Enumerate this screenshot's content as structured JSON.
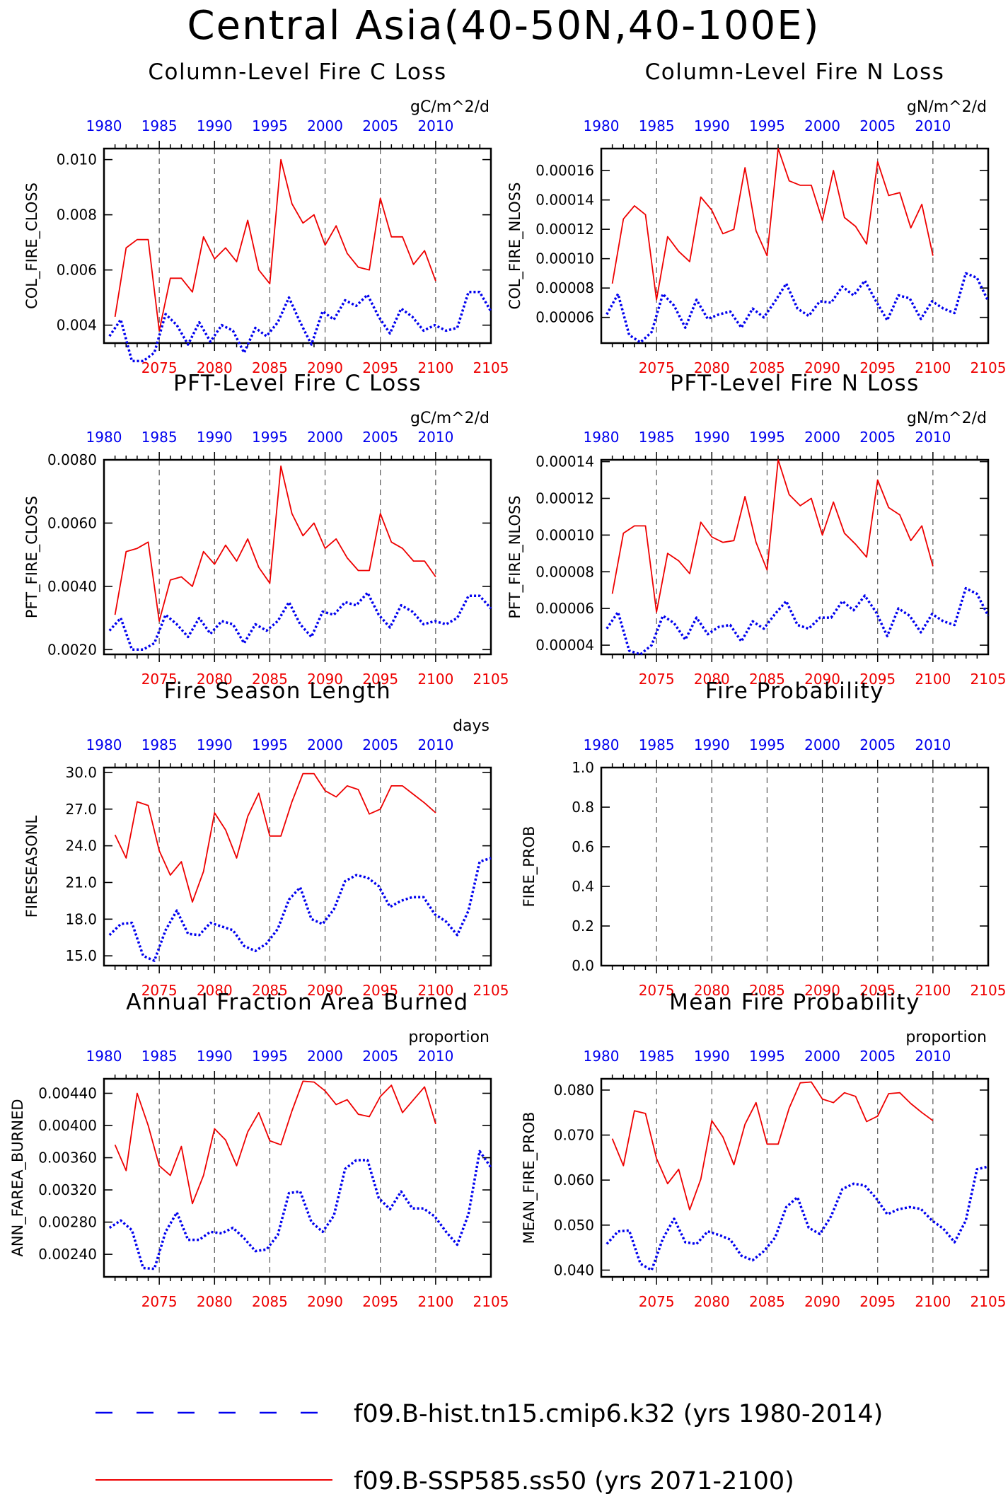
{
  "page_title": "Central Asia(40-50N,40-100E)",
  "colors": {
    "hist": "#0000ee",
    "ssp": "#ee0000",
    "axis": "#000000",
    "grid": "#555555"
  },
  "legend": [
    {
      "label": "f09.B-hist.tn15.cmip6.k32 (yrs 1980-2014)",
      "color": "#0000ee",
      "style": "dashed"
    },
    {
      "label": "f09.B-SSP585.ss50 (yrs 2071-2100)",
      "color": "#ee0000",
      "style": "solid"
    }
  ],
  "chart_data": [
    {
      "type": "line",
      "title": "Column-Level Fire C Loss",
      "units": "gC/m^2/d",
      "ylabel": "COL_FIRE_CLOSS",
      "ylim": [
        0.00335,
        0.0104
      ],
      "yticks": [
        0.004,
        0.006,
        0.008,
        0.01
      ],
      "yticklabels": [
        "0.004",
        "0.006",
        "0.008",
        "0.010"
      ],
      "top_x": [
        1980,
        1985,
        1990,
        1995,
        2000,
        2005,
        2010
      ],
      "bottom_x": [
        2075,
        2080,
        2085,
        2090,
        2095,
        2100,
        2105
      ],
      "hist_x0": 1980,
      "ssp_x0": 2071,
      "series": [
        {
          "role": "hist",
          "values": [
            0.0036,
            0.0042,
            0.0027,
            0.0027,
            0.003,
            0.0044,
            0.004,
            0.0033,
            0.0041,
            0.0034,
            0.004,
            0.0038,
            0.003,
            0.0039,
            0.0036,
            0.0041,
            0.005,
            0.0041,
            0.0033,
            0.0045,
            0.0042,
            0.0049,
            0.0047,
            0.0051,
            0.0043,
            0.0037,
            0.0046,
            0.0043,
            0.0038,
            0.004,
            0.0038,
            0.0039,
            0.0052,
            0.0052,
            0.0045
          ]
        },
        {
          "role": "ssp",
          "values": [
            0.0043,
            0.0068,
            0.0071,
            0.0071,
            0.0038,
            0.0057,
            0.0057,
            0.0052,
            0.0072,
            0.0064,
            0.0068,
            0.0063,
            0.0078,
            0.006,
            0.0055,
            0.01,
            0.0084,
            0.0077,
            0.008,
            0.0069,
            0.0076,
            0.0066,
            0.0061,
            0.006,
            0.0086,
            0.0072,
            0.0072,
            0.0062,
            0.0067,
            0.0056
          ]
        }
      ]
    },
    {
      "type": "line",
      "title": "Column-Level Fire N Loss",
      "units": "gN/m^2/d",
      "ylabel": "COL_FIRE_NLOSS",
      "ylim": [
        4.25e-05,
        0.000175
      ],
      "yticks": [
        6e-05,
        8e-05,
        0.0001,
        0.00012,
        0.00014,
        0.00016
      ],
      "yticklabels": [
        "0.00006",
        "0.00008",
        "0.00010",
        "0.00012",
        "0.00014",
        "0.00016"
      ],
      "top_x": [
        1980,
        1985,
        1990,
        1995,
        2000,
        2005,
        2010
      ],
      "bottom_x": [
        2075,
        2080,
        2085,
        2090,
        2095,
        2100,
        2105
      ],
      "hist_x0": 1980,
      "ssp_x0": 2071,
      "series": [
        {
          "role": "hist",
          "values": [
            6.2e-05,
            7.6e-05,
            4.8e-05,
            4.3e-05,
            5e-05,
            7.6e-05,
            6.8e-05,
            5.3e-05,
            7.2e-05,
            5.9e-05,
            6.2e-05,
            6.4e-05,
            5.3e-05,
            6.6e-05,
            6e-05,
            7.1e-05,
            8.3e-05,
            6.6e-05,
            6.1e-05,
            7.1e-05,
            7e-05,
            8.1e-05,
            7.5e-05,
            8.5e-05,
            7.1e-05,
            5.8e-05,
            7.5e-05,
            7.3e-05,
            5.9e-05,
            7.1e-05,
            6.6e-05,
            6.3e-05,
            9e-05,
            8.7e-05,
            7.1e-05
          ]
        },
        {
          "role": "ssp",
          "values": [
            8.3e-05,
            0.000127,
            0.000136,
            0.00013,
            7.2e-05,
            0.000115,
            0.000105,
            9.8e-05,
            0.000142,
            0.000133,
            0.000117,
            0.00012,
            0.000162,
            0.000119,
            0.000102,
            0.000175,
            0.000153,
            0.00015,
            0.00015,
            0.000126,
            0.00016,
            0.000128,
            0.000122,
            0.00011,
            0.000166,
            0.000143,
            0.000145,
            0.000121,
            0.000137,
            0.000102
          ]
        }
      ]
    },
    {
      "type": "line",
      "title": "PFT-Level Fire C Loss",
      "units": "gC/m^2/d",
      "ylabel": "PFT_FIRE_CLOSS",
      "ylim": [
        0.00185,
        0.008
      ],
      "yticks": [
        0.002,
        0.004,
        0.006,
        0.008
      ],
      "yticklabels": [
        "0.0020",
        "0.0040",
        "0.0060",
        "0.0080"
      ],
      "top_x": [
        1980,
        1985,
        1990,
        1995,
        2000,
        2005,
        2010
      ],
      "bottom_x": [
        2075,
        2080,
        2085,
        2090,
        2095,
        2100,
        2105
      ],
      "hist_x0": 1980,
      "ssp_x0": 2071,
      "series": [
        {
          "role": "hist",
          "values": [
            0.0026,
            0.003,
            0.002,
            0.002,
            0.0022,
            0.0031,
            0.0028,
            0.0024,
            0.003,
            0.0025,
            0.0029,
            0.0028,
            0.0022,
            0.0028,
            0.0026,
            0.0029,
            0.0035,
            0.0028,
            0.0024,
            0.0032,
            0.0031,
            0.0035,
            0.0034,
            0.0038,
            0.0031,
            0.0027,
            0.0034,
            0.0032,
            0.0028,
            0.0029,
            0.0028,
            0.003,
            0.0037,
            0.0037,
            0.0033
          ]
        },
        {
          "role": "ssp",
          "values": [
            0.0031,
            0.0051,
            0.0052,
            0.0054,
            0.0029,
            0.0042,
            0.0043,
            0.004,
            0.0051,
            0.0047,
            0.0053,
            0.0048,
            0.0055,
            0.0046,
            0.0041,
            0.0078,
            0.0063,
            0.0056,
            0.006,
            0.0052,
            0.0055,
            0.0049,
            0.0045,
            0.0045,
            0.0063,
            0.0054,
            0.0052,
            0.0048,
            0.0048,
            0.0043
          ]
        }
      ]
    },
    {
      "type": "line",
      "title": "PFT-Level Fire N Loss",
      "units": "gN/m^2/d",
      "ylabel": "PFT_FIRE_NLOSS",
      "ylim": [
        3.5e-05,
        0.000141
      ],
      "yticks": [
        4e-05,
        6e-05,
        8e-05,
        0.0001,
        0.00012,
        0.00014
      ],
      "yticklabels": [
        "0.00004",
        "0.00006",
        "0.00008",
        "0.00010",
        "0.00012",
        "0.00014"
      ],
      "top_x": [
        1980,
        1985,
        1990,
        1995,
        2000,
        2005,
        2010
      ],
      "bottom_x": [
        2075,
        2080,
        2085,
        2090,
        2095,
        2100,
        2105
      ],
      "hist_x0": 1980,
      "ssp_x0": 2071,
      "series": [
        {
          "role": "hist",
          "values": [
            4.9e-05,
            5.8e-05,
            3.7e-05,
            3.5e-05,
            4e-05,
            5.6e-05,
            5.2e-05,
            4.3e-05,
            5.5e-05,
            4.6e-05,
            5e-05,
            5.1e-05,
            4.2e-05,
            5.3e-05,
            4.9e-05,
            5.7e-05,
            6.4e-05,
            5.1e-05,
            4.9e-05,
            5.5e-05,
            5.5e-05,
            6.4e-05,
            5.9e-05,
            6.7e-05,
            5.8e-05,
            4.5e-05,
            6e-05,
            5.6e-05,
            4.7e-05,
            5.7e-05,
            5.3e-05,
            5.1e-05,
            7.1e-05,
            6.8e-05,
            5.6e-05
          ]
        },
        {
          "role": "ssp",
          "values": [
            6.8e-05,
            0.000101,
            0.000105,
            0.000105,
            5.8e-05,
            9e-05,
            8.6e-05,
            7.9e-05,
            0.000107,
            9.9e-05,
            9.6e-05,
            9.7e-05,
            0.000121,
            9.6e-05,
            8.1e-05,
            0.000141,
            0.000122,
            0.000116,
            0.00012,
            0.0001,
            0.000118,
            0.000101,
            9.5e-05,
            8.8e-05,
            0.00013,
            0.000115,
            0.000111,
            9.7e-05,
            0.000105,
            8.3e-05
          ]
        }
      ]
    },
    {
      "type": "line",
      "title": "Fire Season Length",
      "units": "days",
      "ylabel": "FIRESEASONL",
      "ylim": [
        14.2,
        30.4
      ],
      "yticks": [
        15,
        18,
        21,
        24,
        27,
        30
      ],
      "yticklabels": [
        "15.0",
        "18.0",
        "21.0",
        "24.0",
        "27.0",
        "30.0"
      ],
      "top_x": [
        1980,
        1985,
        1990,
        1995,
        2000,
        2005,
        2010
      ],
      "bottom_x": [
        2075,
        2080,
        2085,
        2090,
        2095,
        2100,
        2105
      ],
      "hist_x0": 1980,
      "ssp_x0": 2071,
      "series": [
        {
          "role": "hist",
          "values": [
            16.7,
            17.6,
            17.7,
            15.0,
            14.6,
            17.1,
            18.7,
            16.8,
            16.7,
            17.7,
            17.4,
            17.1,
            15.8,
            15.4,
            16.0,
            17.2,
            19.6,
            20.6,
            18.0,
            17.6,
            18.8,
            21.1,
            21.6,
            21.4,
            20.7,
            19.0,
            19.5,
            19.8,
            19.8,
            18.4,
            17.8,
            16.7,
            18.7,
            22.7,
            23.0
          ]
        },
        {
          "role": "ssp",
          "values": [
            24.9,
            23.0,
            27.6,
            27.3,
            23.6,
            21.6,
            22.7,
            19.4,
            21.9,
            26.7,
            25.3,
            23.0,
            26.4,
            28.3,
            24.8,
            24.8,
            27.6,
            29.9,
            29.9,
            28.5,
            28.0,
            28.9,
            28.6,
            26.6,
            27.0,
            28.9,
            28.9,
            28.2,
            27.5,
            26.7
          ]
        }
      ]
    },
    {
      "type": "line",
      "title": "Fire Probability",
      "units": "",
      "ylabel": "FIRE_PROB",
      "ylim": [
        0,
        1
      ],
      "yticks": [
        0,
        0.2,
        0.4,
        0.6,
        0.8,
        1.0
      ],
      "yticklabels": [
        "0.0",
        "0.2",
        "0.4",
        "0.6",
        "0.8",
        "1.0"
      ],
      "top_x": [
        1980,
        1985,
        1990,
        1995,
        2000,
        2005,
        2010
      ],
      "bottom_x": [
        2075,
        2080,
        2085,
        2090,
        2095,
        2100,
        2105
      ],
      "hist_x0": 1980,
      "ssp_x0": 2071,
      "series": []
    },
    {
      "type": "line",
      "title": "Annual Fraction Area Burned",
      "units": "proportion",
      "ylabel": "ANN_FAREA_BURNED",
      "ylim": [
        0.00212,
        0.00458
      ],
      "yticks": [
        0.0024,
        0.0028,
        0.0032,
        0.0036,
        0.004,
        0.0044
      ],
      "yticklabels": [
        "0.00240",
        "0.00280",
        "0.00320",
        "0.00360",
        "0.00400",
        "0.00440"
      ],
      "top_x": [
        1980,
        1985,
        1990,
        1995,
        2000,
        2005,
        2010
      ],
      "bottom_x": [
        2075,
        2080,
        2085,
        2090,
        2095,
        2100,
        2105
      ],
      "hist_x0": 1980,
      "ssp_x0": 2071,
      "series": [
        {
          "role": "hist",
          "values": [
            0.00273,
            0.00282,
            0.0027,
            0.00223,
            0.00222,
            0.00268,
            0.00292,
            0.00258,
            0.00258,
            0.00268,
            0.00266,
            0.00273,
            0.0026,
            0.00244,
            0.00246,
            0.00264,
            0.00316,
            0.00318,
            0.0028,
            0.00268,
            0.00288,
            0.00346,
            0.00357,
            0.00357,
            0.0031,
            0.00296,
            0.00318,
            0.00297,
            0.00297,
            0.00287,
            0.00268,
            0.00252,
            0.0029,
            0.00368,
            0.00348
          ]
        },
        {
          "role": "ssp",
          "values": [
            0.00376,
            0.00344,
            0.0044,
            0.004,
            0.0035,
            0.00338,
            0.00374,
            0.00303,
            0.00338,
            0.00396,
            0.00382,
            0.0035,
            0.00392,
            0.00416,
            0.00381,
            0.00376,
            0.00418,
            0.00455,
            0.00454,
            0.00443,
            0.00426,
            0.00432,
            0.00414,
            0.00411,
            0.00436,
            0.0045,
            0.00416,
            0.00432,
            0.00448,
            0.00402
          ]
        }
      ]
    },
    {
      "type": "line",
      "title": "Mean Fire Probability",
      "units": "proportion",
      "ylabel": "MEAN_FIRE_PROB",
      "ylim": [
        0.0385,
        0.0825
      ],
      "yticks": [
        0.04,
        0.05,
        0.06,
        0.07,
        0.08
      ],
      "yticklabels": [
        "0.040",
        "0.050",
        "0.060",
        "0.070",
        "0.080"
      ],
      "top_x": [
        1980,
        1985,
        1990,
        1995,
        2000,
        2005,
        2010
      ],
      "bottom_x": [
        2075,
        2080,
        2085,
        2090,
        2095,
        2100,
        2105
      ],
      "hist_x0": 1980,
      "ssp_x0": 2071,
      "series": [
        {
          "role": "hist",
          "values": [
            0.0458,
            0.0486,
            0.0488,
            0.0414,
            0.04,
            0.047,
            0.0514,
            0.0462,
            0.0458,
            0.0486,
            0.0478,
            0.0468,
            0.0432,
            0.0422,
            0.0442,
            0.0472,
            0.054,
            0.0562,
            0.0494,
            0.048,
            0.052,
            0.058,
            0.0592,
            0.0588,
            0.056,
            0.0524,
            0.0535,
            0.054,
            0.0536,
            0.051,
            0.0492,
            0.0462,
            0.051,
            0.0624,
            0.063
          ]
        },
        {
          "role": "ssp",
          "values": [
            0.0692,
            0.0632,
            0.0754,
            0.0748,
            0.0648,
            0.0592,
            0.0624,
            0.0534,
            0.0602,
            0.0732,
            0.0696,
            0.0634,
            0.0724,
            0.0772,
            0.068,
            0.068,
            0.076,
            0.0816,
            0.0818,
            0.078,
            0.0772,
            0.0794,
            0.0786,
            0.073,
            0.0742,
            0.0792,
            0.0794,
            0.077,
            0.075,
            0.0732
          ]
        }
      ]
    }
  ]
}
